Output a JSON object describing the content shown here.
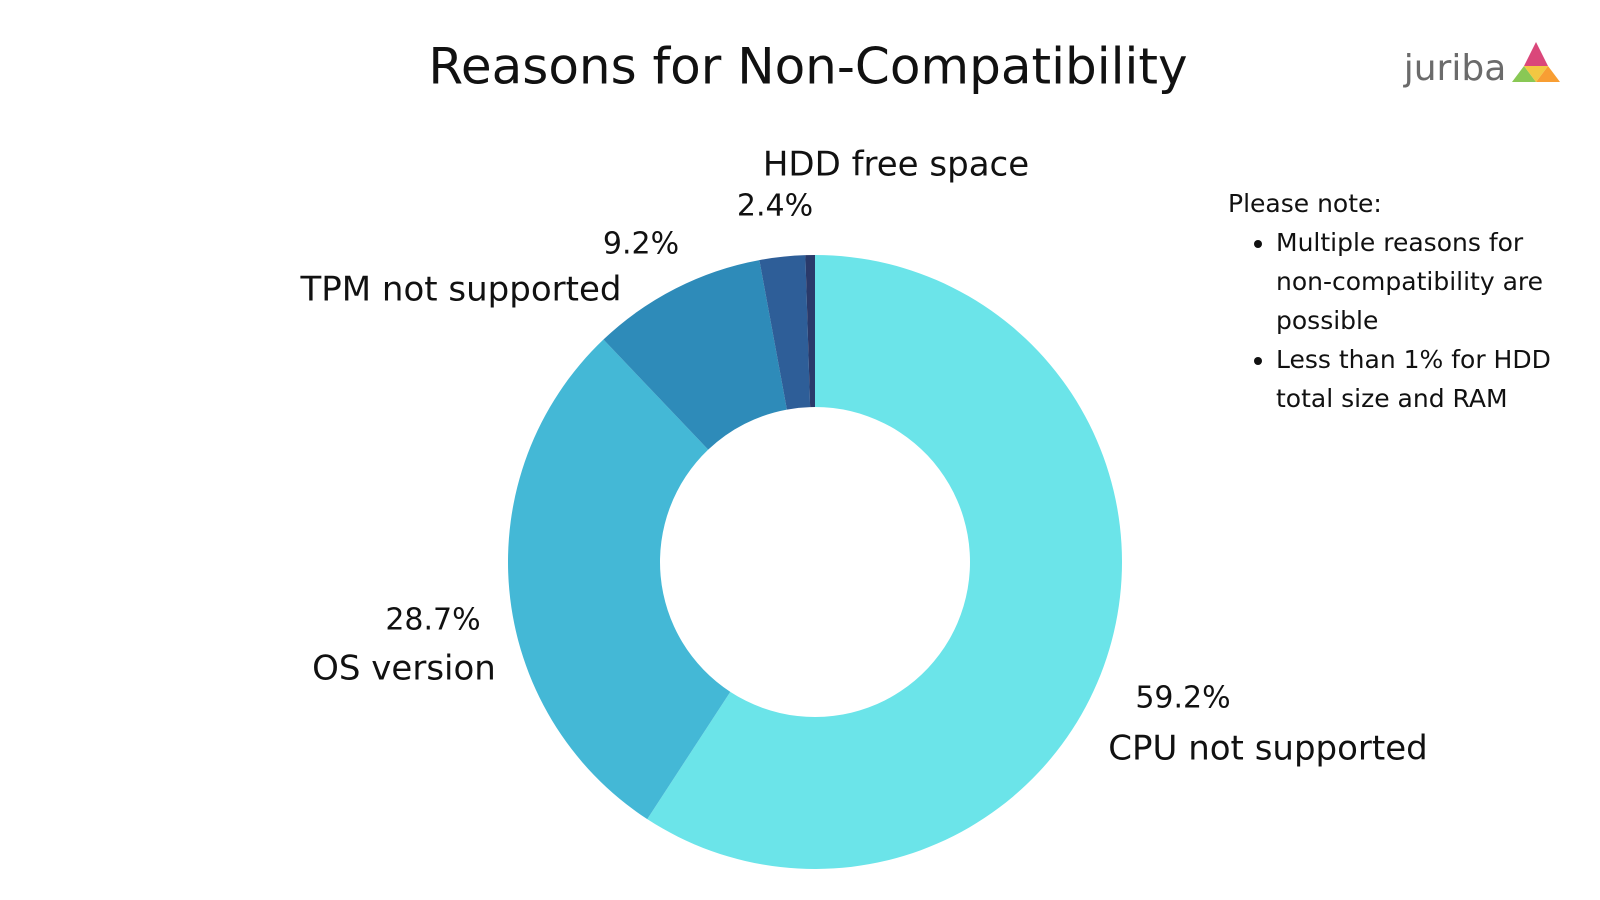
{
  "chart_data": {
    "type": "donut",
    "title": "Reasons for Non-Compatibility",
    "categories": [
      "CPU not supported",
      "OS version",
      "TPM not supported",
      "HDD free space",
      null
    ],
    "values": [
      59.2,
      28.7,
      9.2,
      2.4,
      0.5
    ],
    "value_labels": [
      "59.2%",
      "28.7%",
      "9.2%",
      "2.4%",
      null
    ],
    "colors": [
      "#6be4e9",
      "#44b8d6",
      "#2e8bb9",
      "#2e5e98",
      "#2a3a6a"
    ]
  },
  "note": {
    "heading": "Please note:",
    "items": [
      "Multiple reasons for non-compatibility are possible",
      "Less than 1% for HDD total size and RAM"
    ]
  },
  "logo": "juriba"
}
